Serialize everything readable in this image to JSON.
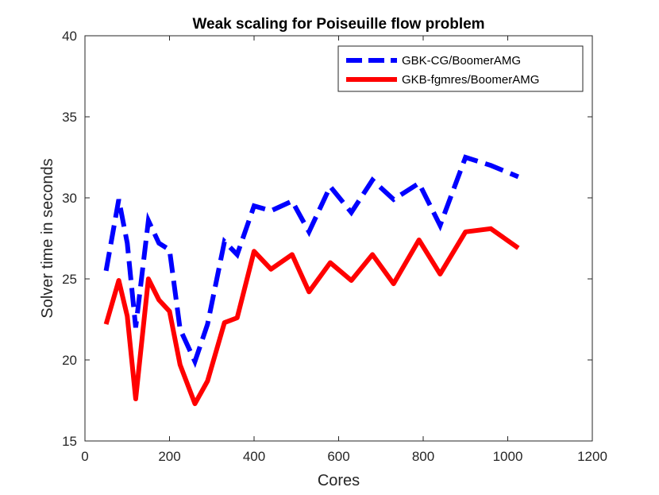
{
  "chart_data": {
    "type": "line",
    "title": "Weak scaling for Poiseuille flow problem",
    "xlabel": "Cores",
    "ylabel": "Solver time in seconds",
    "xlim": [
      0,
      1200
    ],
    "ylim": [
      15,
      40
    ],
    "xticks": [
      0,
      200,
      400,
      600,
      800,
      1000,
      1200
    ],
    "yticks": [
      15,
      20,
      25,
      30,
      35,
      40
    ],
    "xtick_labels": [
      "0",
      "200",
      "400",
      "600",
      "800",
      "1000",
      "1200"
    ],
    "ytick_labels": [
      "15",
      "20",
      "25",
      "30",
      "35",
      "40"
    ],
    "legend_position": "top-right",
    "series": [
      {
        "name": "GBK-CG/BoomerAMG",
        "color": "#0000ff",
        "style": "dashed",
        "x": [
          50,
          80,
          100,
          120,
          150,
          175,
          200,
          225,
          260,
          290,
          330,
          360,
          400,
          440,
          490,
          530,
          580,
          630,
          680,
          730,
          790,
          840,
          900,
          960,
          1025
        ],
        "y": [
          25.5,
          29.9,
          27.2,
          22.0,
          28.6,
          27.2,
          26.8,
          21.9,
          19.9,
          22.2,
          27.3,
          26.5,
          29.5,
          29.2,
          29.8,
          27.9,
          30.7,
          29.1,
          31.1,
          29.9,
          30.9,
          28.3,
          32.5,
          32.0,
          31.3
        ]
      },
      {
        "name": "GKB-fgmres/BoomerAMG",
        "color": "#ff0000",
        "style": "solid",
        "x": [
          50,
          80,
          100,
          120,
          150,
          175,
          200,
          225,
          260,
          290,
          330,
          360,
          400,
          440,
          490,
          530,
          580,
          630,
          680,
          730,
          790,
          840,
          900,
          960,
          1025
        ],
        "y": [
          22.2,
          24.9,
          22.7,
          17.6,
          25.0,
          23.7,
          23.0,
          19.7,
          17.3,
          18.7,
          22.3,
          22.6,
          26.7,
          25.6,
          26.5,
          24.2,
          26.0,
          24.9,
          26.5,
          24.7,
          27.4,
          25.3,
          27.9,
          28.1,
          26.9
        ]
      }
    ]
  }
}
